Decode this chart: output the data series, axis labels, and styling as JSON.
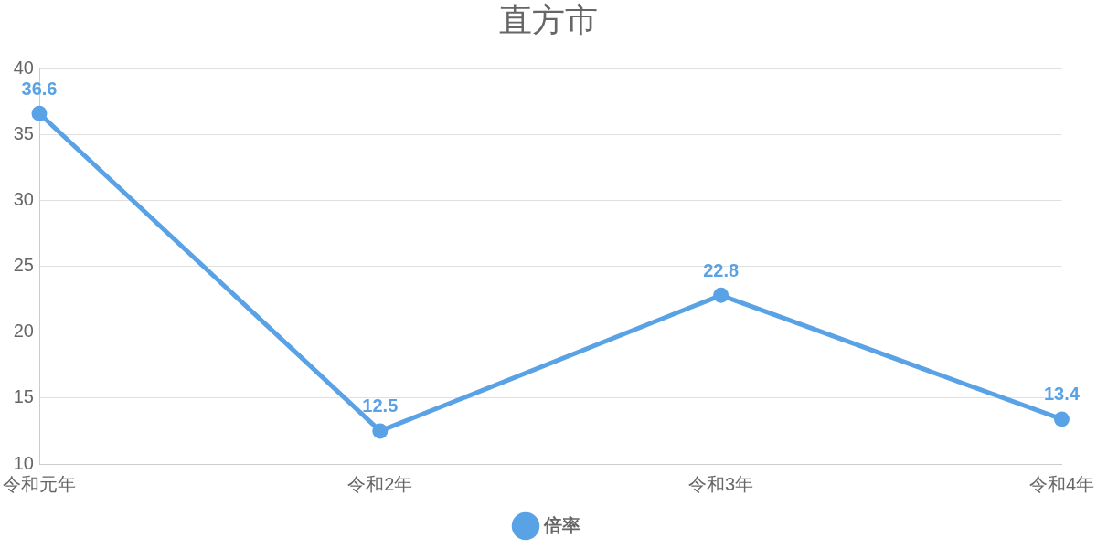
{
  "chart_data": {
    "type": "line",
    "title": "直方市",
    "categories": [
      "令和元年",
      "令和2年",
      "令和3年",
      "令和4年"
    ],
    "series": [
      {
        "name": "倍率",
        "color": "#5aa2e6",
        "values": [
          36.6,
          12.5,
          22.8,
          13.4
        ]
      }
    ],
    "ylim": [
      10,
      40
    ],
    "yticks": [
      10,
      15,
      20,
      25,
      30,
      35,
      40
    ],
    "grid": "y",
    "legend": "bottom",
    "marker": "circle",
    "data_labels": true
  }
}
